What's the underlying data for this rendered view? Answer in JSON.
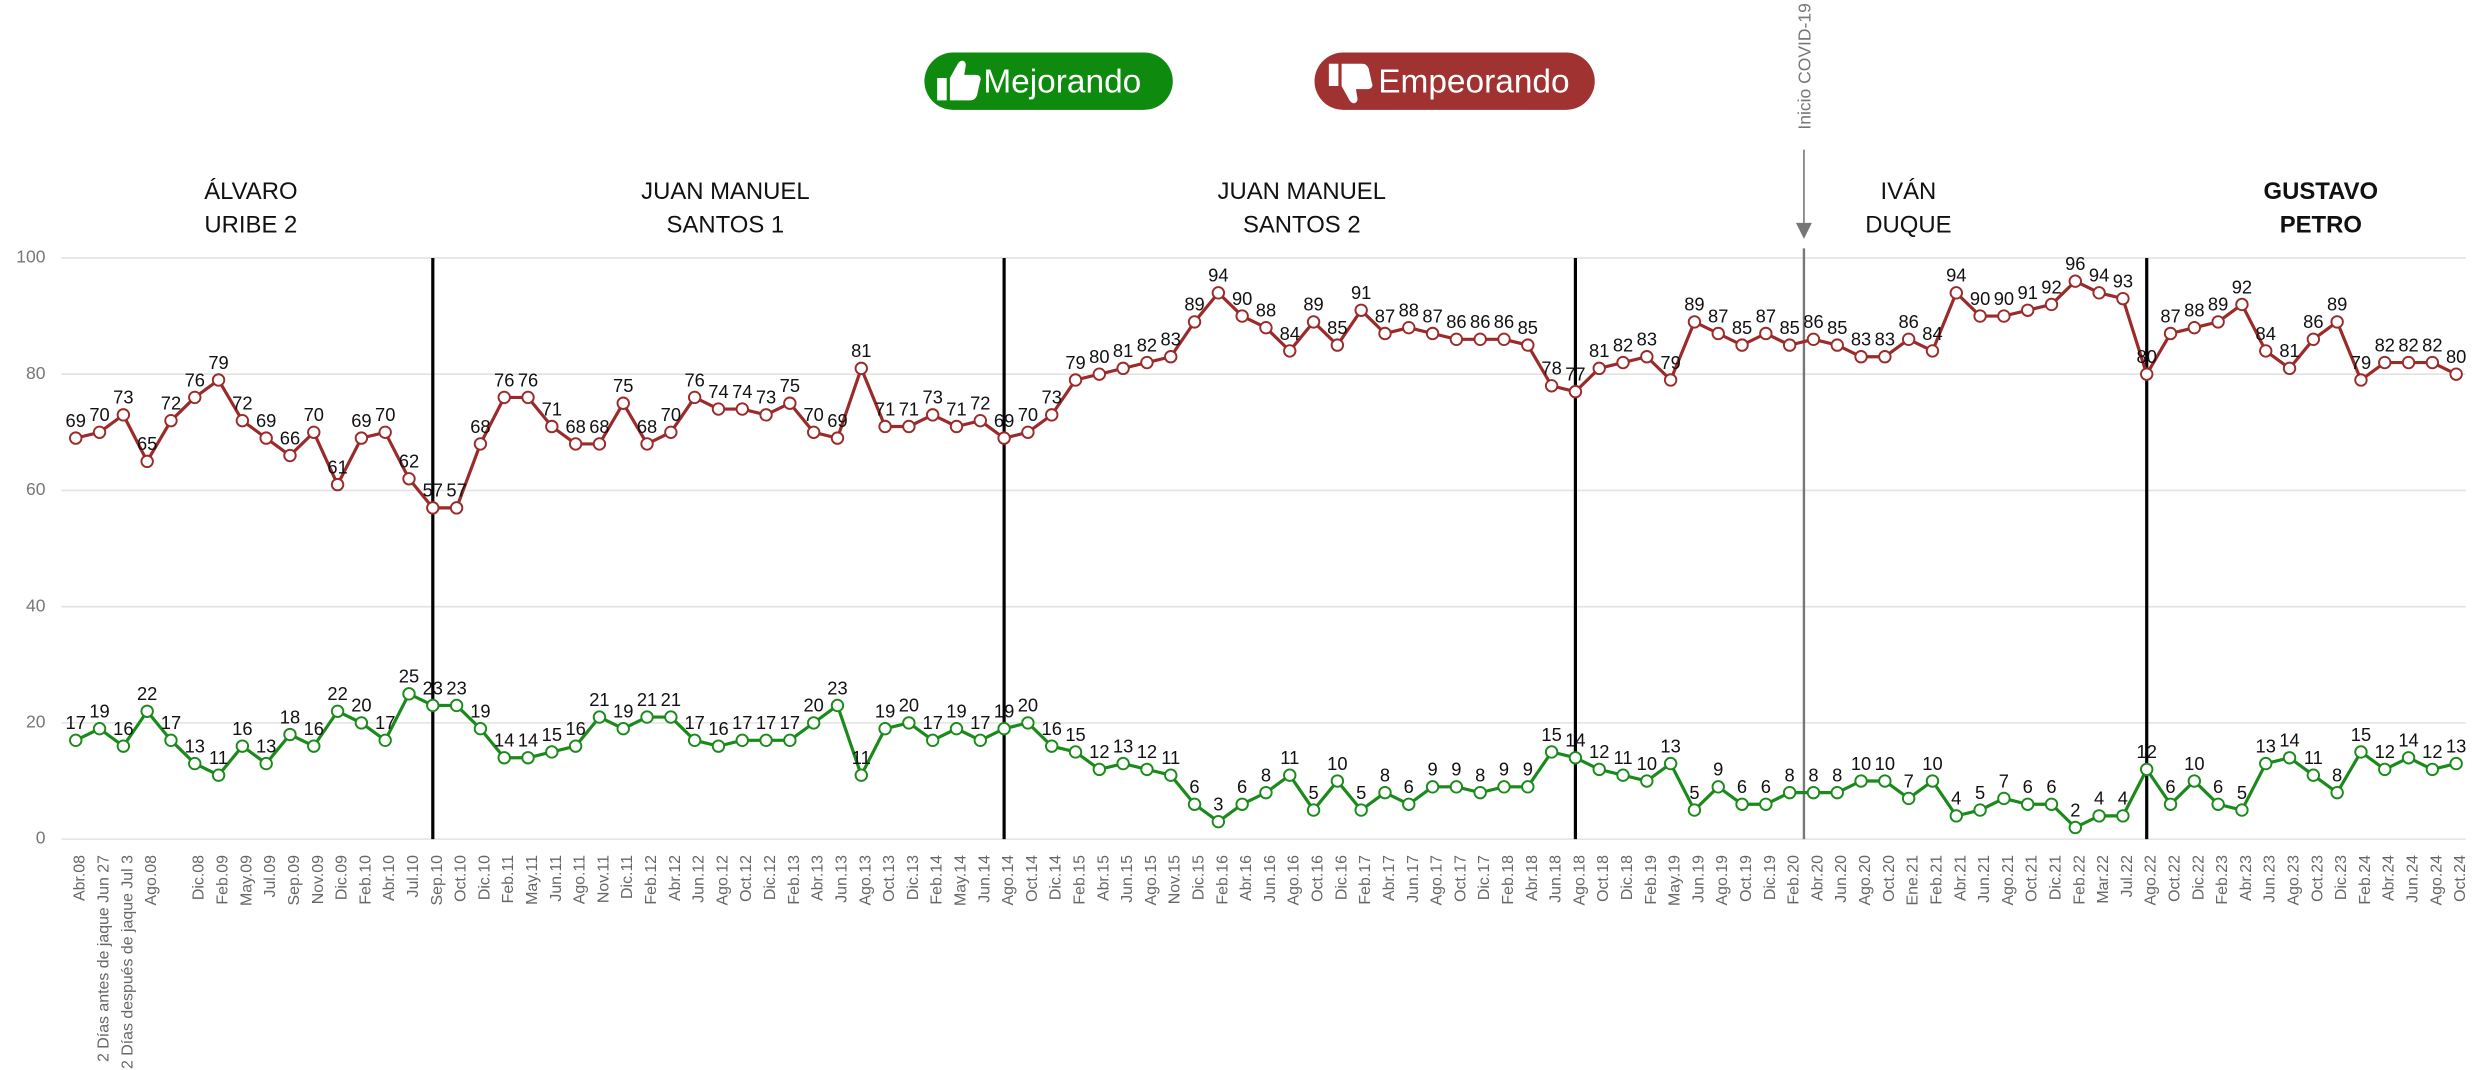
{
  "chart_data": {
    "type": "line",
    "categories": [
      "Abr.08",
      "2 Días antes de jaque Jun 27",
      "2 Días después de jaque Jul 3",
      "Ago.08",
      null,
      "Dic.08",
      "Feb.09",
      "May.09",
      "Jul.09",
      "Sep.09",
      "Nov.09",
      "Dic.09",
      "Feb.10",
      "Abr.10",
      "Jul.10",
      "Sep.10",
      "Oct.10",
      "Dic.10",
      "Feb.11",
      "May.11",
      "Jun.11",
      "Ago.11",
      "Nov.11",
      "Dic.11",
      "Feb.12",
      "Abr.12",
      "Jun.12",
      "Ago.12",
      "Oct.12",
      "Dic.12",
      "Feb.13",
      "Abr.13",
      "Jun.13",
      "Ago.13",
      "Oct.13",
      "Dic.13",
      "Feb.14",
      "May.14",
      "Jun.14",
      "Ago.14",
      "Oct.14",
      "Dic.14",
      "Feb.15",
      "Abr.15",
      "Jun.15",
      "Ago.15",
      "Nov.15",
      "Dic.15",
      "Feb.16",
      "Abr.16",
      "Jun.16",
      "Ago.16",
      "Oct.16",
      "Dic.16",
      "Feb.17",
      "Abr.17",
      "Jun.17",
      "Ago.17",
      "Oct.17",
      "Dic.17",
      "Feb.18",
      "Abr.18",
      "Jun.18",
      "Ago.18",
      "Oct.18",
      "Dic.18",
      "Feb.19",
      "May.19",
      "Jun.19",
      "Ago.19",
      "Oct.19",
      "Dic.19",
      "Feb.20",
      "Abr.20",
      "Jun.20",
      "Ago.20",
      "Oct.20",
      "Ene.21",
      "Feb.21",
      "Abr.21",
      "Jun.21",
      "Ago.21",
      "Oct.21",
      "Dic.21",
      "Feb.22",
      "Mar.22",
      "Jul.22",
      "Ago.22",
      "Oct.22",
      "Dic.22",
      "Feb.23",
      "Abr.23",
      "Jun.23",
      "Ago.23",
      "Oct.23",
      "Dic.23",
      "Feb.24",
      "Abr.24",
      "Jun.24",
      "Ago.24",
      "Oct.24"
    ],
    "series": [
      {
        "name": "Mejorando",
        "color": "#1a8a1a",
        "values": [
          17,
          19,
          16,
          22,
          17,
          13,
          11,
          16,
          13,
          18,
          16,
          22,
          20,
          17,
          25,
          23,
          23,
          19,
          14,
          14,
          15,
          16,
          21,
          19,
          21,
          21,
          17,
          16,
          17,
          17,
          17,
          20,
          23,
          11,
          19,
          20,
          17,
          19,
          17,
          19,
          20,
          16,
          15,
          12,
          13,
          12,
          11,
          6,
          3,
          6,
          8,
          11,
          5,
          10,
          5,
          8,
          6,
          9,
          9,
          8,
          9,
          9,
          15,
          14,
          12,
          11,
          10,
          13,
          5,
          9,
          6,
          6,
          8,
          8,
          8,
          10,
          10,
          7,
          10,
          4,
          5,
          7,
          6,
          6,
          2,
          4,
          4,
          12,
          6,
          10,
          6,
          5,
          13,
          14,
          11,
          8,
          15,
          12,
          14,
          12,
          13
        ]
      },
      {
        "name": "Empeorando",
        "color": "#9b2a2a",
        "values": [
          69,
          70,
          73,
          65,
          72,
          76,
          79,
          72,
          69,
          66,
          70,
          61,
          69,
          70,
          62,
          57,
          57,
          68,
          76,
          76,
          71,
          68,
          68,
          75,
          68,
          70,
          76,
          74,
          74,
          73,
          75,
          70,
          69,
          81,
          71,
          71,
          73,
          71,
          72,
          69,
          70,
          73,
          79,
          80,
          81,
          82,
          83,
          89,
          94,
          90,
          88,
          84,
          89,
          85,
          91,
          87,
          88,
          87,
          86,
          86,
          86,
          85,
          78,
          77,
          81,
          82,
          83,
          79,
          89,
          87,
          85,
          87,
          85,
          86,
          85,
          83,
          83,
          86,
          84,
          94,
          90,
          90,
          91,
          92,
          96,
          94,
          93,
          80,
          87,
          88,
          89,
          92,
          84,
          81,
          86,
          89,
          79,
          82,
          82,
          82,
          80
        ]
      }
    ],
    "periods": [
      [
        "ÁLVARO",
        "URIBE 2"
      ],
      [
        "JUAN MANUEL",
        "SANTOS 1"
      ],
      [
        "JUAN MANUEL",
        "SANTOS 2"
      ],
      [
        "IVÁN",
        "DUQUE"
      ],
      [
        "GUSTAVO",
        "PETRO"
      ]
    ],
    "annotation": "Inicio COVID-19",
    "ylim": [
      0,
      100
    ],
    "yticks": [
      0,
      20,
      40,
      60,
      80,
      100
    ],
    "grid": true
  }
}
